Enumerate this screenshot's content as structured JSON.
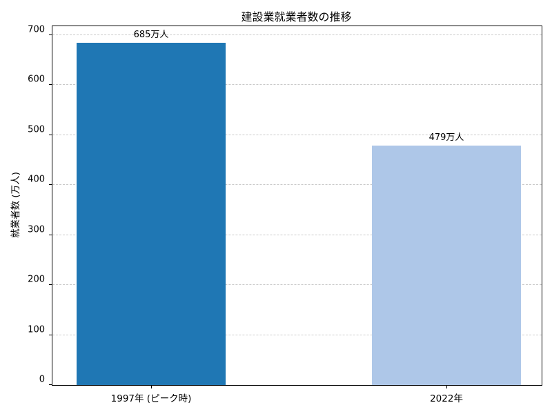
{
  "chart_data": {
    "type": "bar",
    "title": "建設業就業者数の推移",
    "xlabel": "",
    "ylabel": "就業者数 (万人)",
    "categories": [
      "1997年 (ピーク時)",
      "2022年"
    ],
    "values": [
      685,
      479
    ],
    "value_labels": [
      "685万人",
      "479万人"
    ],
    "bar_colors": [
      "#1f77b4",
      "#aec7e8"
    ],
    "yticks": [
      0,
      100,
      200,
      300,
      400,
      500,
      600,
      700
    ],
    "ylim": [
      0,
      718
    ],
    "grid": "horizontal-dashed",
    "gridline_color": "#c9c9c9",
    "legend": "none",
    "background_color": "#ffffff",
    "spine_color": "#000000"
  }
}
